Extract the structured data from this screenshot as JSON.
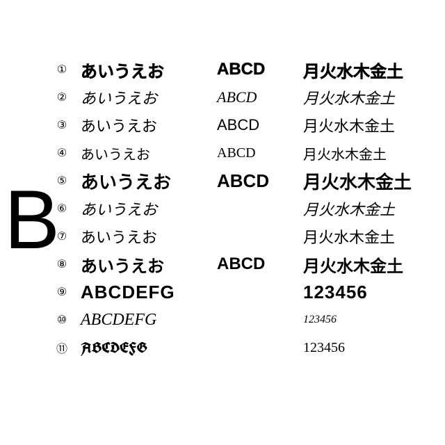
{
  "big_letter": "B",
  "rows": [
    {
      "num": "①",
      "a": "あいうえお",
      "b": "ABCD",
      "c": "月火水木金土",
      "cls": "f1"
    },
    {
      "num": "②",
      "a": "あいうえお",
      "b": "ABCD",
      "c": "月火水木金土",
      "cls": "f2"
    },
    {
      "num": "③",
      "a": "あいうえお",
      "b": "ABCD",
      "c": "月火水木金土",
      "cls": "f3"
    },
    {
      "num": "④",
      "a": "あいうえお",
      "b": "ABCD",
      "c": "月火水木金土",
      "cls": "f4"
    },
    {
      "num": "⑤",
      "a": "あいうえお",
      "b": "ABCD",
      "c": "月火水木金土",
      "cls": "f5"
    },
    {
      "num": "⑥",
      "a": "あいうえお",
      "b": "",
      "c": "月火水木金土",
      "cls": "f6"
    },
    {
      "num": "⑦",
      "a": "あいうえお",
      "b": "",
      "c": "月火水木金土",
      "cls": "f7"
    },
    {
      "num": "⑧",
      "a": "あいうえお",
      "b": "ABCD",
      "c": "月火水木金土",
      "cls": "f8"
    },
    {
      "num": "⑨",
      "a": "ABCDEFG",
      "b": "",
      "c": "123456",
      "cls": "f9"
    },
    {
      "num": "⑩",
      "a": "ABCDEFG",
      "b": "",
      "c": "123456",
      "cls": "f10",
      "clsR": "f10r"
    },
    {
      "num": "⑪",
      "a": "ABCDEFG",
      "b": "",
      "c": "123456",
      "cls": "f11",
      "clsR": "f11r"
    }
  ],
  "colors": {
    "background": "#ffffff",
    "text": "#000000"
  }
}
